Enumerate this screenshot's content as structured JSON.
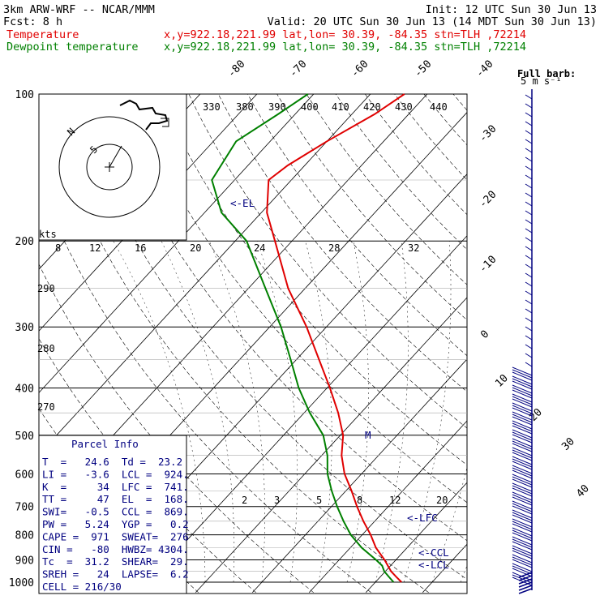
{
  "header": {
    "line1_left": "3km ARW-WRF -- NCAR/MMM",
    "line1_right": "Init: 12 UTC Sun 30 Jun 13",
    "line2_left": "Fcst:     8 h",
    "line2_right": "Valid: 20 UTC Sun 30 Jun 13 (14 MDT Sun 30 Jun 13)",
    "line3_label": "Temperature",
    "line3_info": "x,y=922.18,221.99   lat,lon= 30.39, -84.35   stn=TLH ,72214",
    "line4_label": "Dewpoint temperature",
    "line4_info": "x,y=922.18,221.99   lat,lon= 30.39, -84.35   stn=TLH ,72214"
  },
  "colors": {
    "temperature": "#e00000",
    "dewpoint": "#008000",
    "wind": "#000080",
    "info": "#000080"
  },
  "chart_data": {
    "type": "line",
    "title": "",
    "xlabel": "",
    "ylabel": "",
    "pressure_levels": [
      100,
      200,
      300,
      400,
      500,
      600,
      700,
      800,
      900,
      1000
    ],
    "isotherm_labels": [
      "-80",
      "-70",
      "-60",
      "-50",
      "-40",
      "-30",
      "-20",
      "-10",
      "0",
      "10",
      "20",
      "30",
      "40"
    ],
    "theta_labels": [
      "330",
      "380",
      "390",
      "400",
      "410",
      "420",
      "430",
      "440"
    ],
    "theta_labels_left": [
      "290",
      "280",
      "270"
    ],
    "hodograph_labels": [
      "kts",
      "8",
      "12",
      "16",
      "20",
      "24",
      "28",
      "32"
    ],
    "mixing_ratio_labels": [
      "2",
      "3",
      "5",
      "8",
      "12",
      "20"
    ],
    "full_barb_label": "Full barb:",
    "full_barb_value": "5 m s⁻¹",
    "markers": [
      "<-EL",
      "<-LFC",
      "<-CCL",
      "<-LCL"
    ],
    "series": [
      {
        "name": "Temperature",
        "points": [
          [
            1000,
            24.6
          ],
          [
            975,
            22.8
          ],
          [
            950,
            21.0
          ],
          [
            925,
            19.5
          ],
          [
            900,
            18.0
          ],
          [
            850,
            14.5
          ],
          [
            800,
            11.5
          ],
          [
            750,
            8.0
          ],
          [
            700,
            4.5
          ],
          [
            650,
            1.0
          ],
          [
            600,
            -3.0
          ],
          [
            550,
            -6.5
          ],
          [
            500,
            -9.5
          ],
          [
            450,
            -14.0
          ],
          [
            400,
            -19.5
          ],
          [
            350,
            -26.0
          ],
          [
            300,
            -33.5
          ],
          [
            250,
            -43.0
          ],
          [
            200,
            -53.0
          ],
          [
            175,
            -59.0
          ],
          [
            150,
            -64.0
          ],
          [
            140,
            -63.0
          ],
          [
            125,
            -60.0
          ],
          [
            110,
            -56.0
          ],
          [
            100,
            -54.0
          ]
        ]
      },
      {
        "name": "Dewpoint temperature",
        "points": [
          [
            1000,
            23.2
          ],
          [
            975,
            21.5
          ],
          [
            950,
            19.8
          ],
          [
            925,
            18.5
          ],
          [
            900,
            16.5
          ],
          [
            850,
            12.0
          ],
          [
            800,
            8.0
          ],
          [
            750,
            4.5
          ],
          [
            700,
            1.0
          ],
          [
            650,
            -2.5
          ],
          [
            600,
            -6.0
          ],
          [
            550,
            -9.0
          ],
          [
            500,
            -13.0
          ],
          [
            450,
            -19.0
          ],
          [
            400,
            -25.0
          ],
          [
            350,
            -31.0
          ],
          [
            300,
            -38.0
          ],
          [
            250,
            -47.0
          ],
          [
            200,
            -58.0
          ],
          [
            175,
            -67.0
          ],
          [
            150,
            -74.0
          ],
          [
            125,
            -76.0
          ],
          [
            110,
            -73.0
          ],
          [
            100,
            -71.0
          ]
        ]
      }
    ]
  },
  "parcel_info": {
    "title": "Parcel Info",
    "rows": [
      "T  =   24.6  Td =  23.2",
      "LI =   -3.6  LCL =  924.",
      "K  =     34  LFC =  741.",
      "TT =     47  EL  =  168.",
      "SWI=   -0.5  CCL =  869.",
      "PW =   5.24  YGP =   0.2",
      "CAPE =  971  SWEAT=  276",
      "CIN =   -80  HWBZ= 4304.",
      "Tc  =  31.2  SHEAR=  29.",
      "SREH =   24  LAPSE=  6.2",
      "CELL = 216/30"
    ]
  }
}
